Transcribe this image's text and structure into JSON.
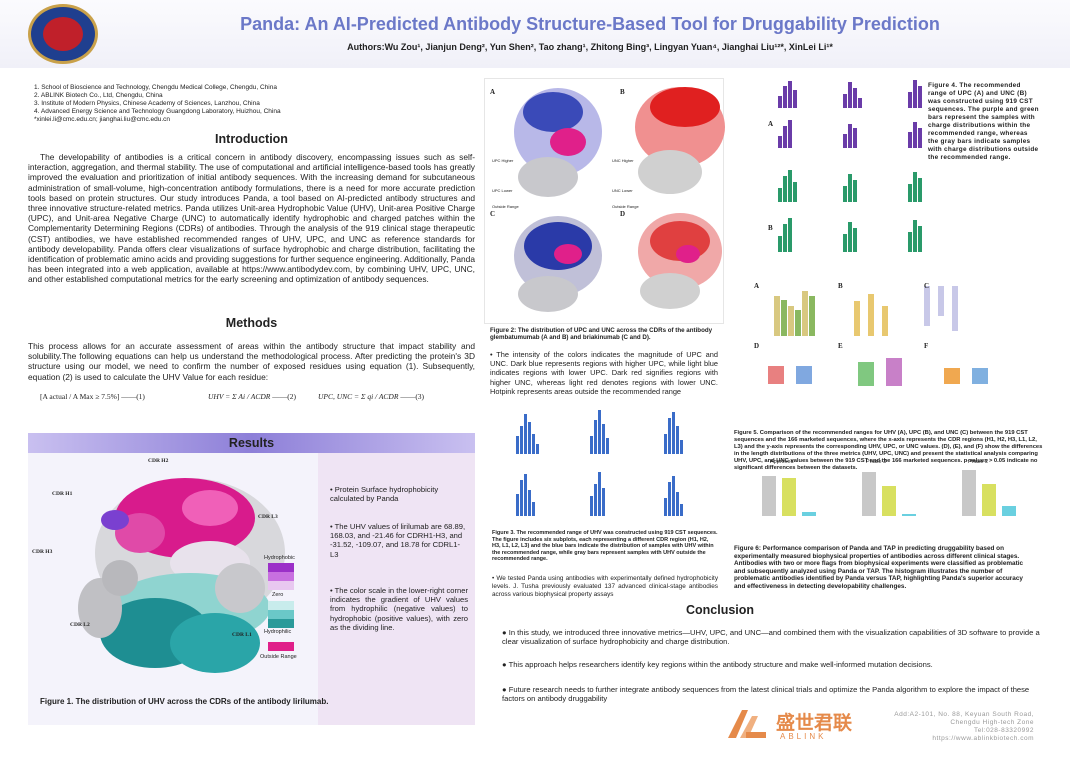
{
  "header": {
    "title": "Panda: An AI-Predicted Antibody Structure-Based Tool for Druggability Prediction",
    "authors": "Authors:Wu Zou¹, Jianjun Deng², Yun Shen², Tao zhang¹, Zhitong Bing³, Lingyan Yuan⁴, Jianghai Liu¹²*, XinLei Li¹*"
  },
  "affiliations": [
    "1. School of Bioscience and Technology, Chengdu Medical College, Chengdu, China",
    "2. ABLINK Biotech Co., Ltd, Chengdu, China",
    "3. Institute of Modern Physics, Chinese Academy of Sciences, Lanzhou, China",
    "4. Advanced Energy Science and Technology Guangdong Laboratory, Huizhou, China",
    "*xinlei.li@cmc.edu.cn; jianghai.liu@cmc.edu.cn"
  ],
  "introduction": {
    "heading": "Introduction",
    "text": "The developability of antibodies is a critical concern in antibody discovery, encompassing issues such as self-interaction, aggregation, and thermal stability. The use of computational and artificial intelligence-based tools has greatly improved the evaluation and prioritization of initial antibody sequences. With the increasing demand for subcutaneous administration of small-volume, high-concentration antibody formulations, there is a need for more accurate prediction tools based on protein structures. Our study introduces Panda, a tool based on AI-predicted antibody structures and three innovative structure-related metrics. Panda utilizes Unit-area Hydrophobic Value (UHV), Unit-area Positive Charge (UPC), and Unit-area Negative Charge (UNC) to automatically identify hydrophobic and charged patches within the Complementarity Determining Regions (CDRs) of antibodies. Through the analysis of the 919 clinical stage therapeutic (CST) antibodies, we have established recommended ranges of UHV, UPC, and UNC as reference standards for antibody developability. Panda offers clear visualizations of surface hydrophobic and charge distribution, facilitating the identification of problematic amino acids and providing suggestions for further sequence engineering. Additionally, Panda has been integrated into a web application, available at https://www.antibodydev.com, by combining UHV, UPC, UNC, and other established computational metrics for the early screening and optimization of antibody sequences."
  },
  "methods": {
    "heading": "Methods",
    "text": "This process allows for an accurate assessment of areas within the antibody structure that impact stability and solubility.The following equations can help us understand the methodological process. After predicting the protein's 3D structure using our model, we need to confirm the number of exposed residues using equation (1). Subsequently, equation (2) is used to calculate the UHV Value for each residue:",
    "eq1": "[A actual / A Max ≥ 7.5%]",
    "eq1_num": "——(1)",
    "eq2": "UHV = Σ Ai / ACDR",
    "eq2_num": "——(2)",
    "eq3": "UPC, UNC = Σ qi / ACDR",
    "eq3_num": "——(3)"
  },
  "results": {
    "heading": "Results",
    "labels": {
      "h2": "CDR H2",
      "h1": "CDR H1",
      "h3": "CDR H3",
      "l3": "CDR L3",
      "l2": "CDR L2",
      "l1": "CDR L1"
    },
    "legend": {
      "hydrophobic": "Hydrophobic",
      "zero": "Zero",
      "hydrophilic": "Hydrophilic",
      "outside": "Outside Range"
    },
    "bullets": [
      "Protein Surface hydrophobicity calculated by Panda",
      "The UHV values of lirilumab are 68.89, 168.03, and -21.46 for CDRH1-H3, and -31.52, -109.07, and 18.78 for CDRL1-L3",
      "The color scale in the lower-right corner indicates the gradient of UHV values from hydrophilic (negative values) to hydrophobic (positive values), with zero as the dividing line."
    ],
    "fig1_caption": "Figure 1. The distribution of UHV across the CDRs of the antibody lirilumab."
  },
  "fig2": {
    "letters": [
      "A",
      "B",
      "C",
      "D"
    ],
    "legend_a": [
      "UPC Higher",
      "UPC Lower",
      "Outside Range"
    ],
    "legend_b": [
      "UNC Higher",
      "UNC Lower",
      "Outside Range"
    ],
    "caption": "Figure 2: The distribution of UPC and UNC across the CDRs of the antibody glembatumumab (A and B) and briakinumab (C and D).",
    "bullet": "The intensity of the colors indicates the magnitude of UPC and UNC. Dark blue represents regions with higher UPC, while light blue indicates regions with lower UPC. Dark red signifies regions with higher UNC, whereas light red denotes regions with lower UNC. Hotpink represents areas outside the recommended range"
  },
  "fig3": {
    "caption": "Figure 3. The recommended range of UHV was constructed using 919 CST sequences. The figure includes six subplots, each representing a different CDR region (H1, H2, H3, L1, L2, L3) and the blue bars indicate the distribution of samples with UHV within the recommended range, while gray bars represent samples with UHV outside the recommended range.",
    "bullet": "We tested Panda using antibodies with experimentally defined hydrophobicity levels. J. Tusha previously evaluated 137 advanced clinical-stage antibodies across various biophysical property assays"
  },
  "fig4": {
    "caption": "Figure 4. The recommended range of UPC (A) and UNC (B) was constructed using 919 CST sequences. The purple and green bars represent the samples with charge distributions within the recommended range, whereas the gray bars indicate samples with charge distributions outside the recommended range.",
    "letters": [
      "A",
      "B"
    ]
  },
  "fig5": {
    "letters": [
      "A",
      "B",
      "C",
      "D",
      "E",
      "F"
    ],
    "caption": "Figure 5. Comparison of the recommended ranges for UHV (A), UPC (B), and UNC (C) between the 919 CST sequences and the 166 marketed sequences, where the x-axis represents the CDR regions (H1, H2, H3, L1, L2, L3) and the y-axis represents the corresponding UHV, UPC, or UNC values. (D), (E), and (F) show the differences in the length distributions of the three metrics (UHV, UPC, UNC) and present the statistical analysis comparing UHV, UPC, and UNC values between the 919 CST and the 166 marketed sequences. p-values > 0.05 indicate no significant differences between the datasets."
  },
  "fig6": {
    "titles": [
      "Approved",
      "Phase 3",
      "Phase 2"
    ],
    "caption": "Figure 6: Performance comparison of Panda and TAP in predicting druggability based on experimentally measured biophysical properties of antibodies across different clinical stages. Antibodies with two or more flags from biophysical experiments were classified as problematic and subsequently analyzed using Panda or TAP. The histogram illustrates the number of problematic antibodies identified by Panda versus TAP, highlighting Panda's superior accuracy and effectiveness in detecting developability challenges."
  },
  "conclusion": {
    "heading": "Conclusion",
    "items": [
      "In this study, we introduced three innovative metrics—UHV, UPC, and UNC—and combined them with the visualization capabilities of 3D software to provide a clear visualization of surface hydrophobicity and charge distribution.",
      "This approach helps researchers identify key regions within the antibody structure and make well-informed mutation decisions.",
      "Future research needs to further integrate antibody sequences from the latest clinical trials and optimize the Panda algorithm to explore the impact of these factors on antibody druggability"
    ]
  },
  "footer": {
    "brand_cn": "盛世君联",
    "brand_en": "ABLINK",
    "address": [
      "Add:A2-101, No. 88, Keyuan South Road,",
      "Chengdu High-tech Zone",
      "Tel:028-83320992",
      "https://www.ablinkbiotech.com"
    ]
  },
  "colors": {
    "title": "#6b78c8",
    "results_bar": "#8d7fd8",
    "hydrophobic": "#9b30c8",
    "hydrophilic": "#2a9a9a",
    "outside": "#e0208a",
    "ablink": "#e58a4a"
  }
}
